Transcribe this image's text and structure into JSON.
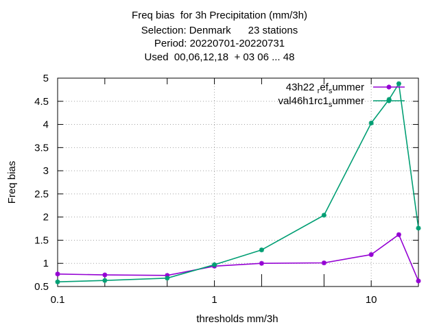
{
  "chart_data": {
    "type": "line",
    "title_lines": [
      "Freq bias  for 3h Precipitation (mm/3h)",
      "Selection: Denmark      23 stations",
      "Period: 20220701-20220731",
      "Used  00,06,12,18  + 03 06 ... 48"
    ],
    "xlabel": "thresholds mm/3h",
    "ylabel": "Freq bias",
    "x_scale": "log",
    "xlim": [
      0.1,
      20
    ],
    "ylim": [
      0.5,
      5
    ],
    "x_ticks": [
      0.1,
      0.2,
      0.5,
      1,
      2,
      5,
      10,
      20
    ],
    "x_tick_labels": [
      "0.1",
      "",
      "",
      "1",
      "",
      "",
      "10",
      ""
    ],
    "y_ticks": [
      0.5,
      1,
      1.5,
      2,
      2.5,
      3,
      3.5,
      4,
      4.5,
      5
    ],
    "y_tick_labels": [
      "0.5",
      "1",
      "1.5",
      "2",
      "2.5",
      "3",
      "3.5",
      "4",
      "4.5",
      "5"
    ],
    "grid": true,
    "legend_position": "top-right",
    "series": [
      {
        "name": "43h22_ref_summer",
        "color": "#9400d3",
        "legend_label": {
          "before": "43h22 ",
          "sub1": "r",
          "mid": "ef",
          "sub2": "s",
          "after": "ummer"
        },
        "x": [
          0.1,
          0.2,
          0.5,
          1,
          2,
          5,
          10,
          15,
          20
        ],
        "y": [
          0.77,
          0.75,
          0.74,
          0.94,
          1.0,
          1.01,
          1.19,
          1.62,
          0.62
        ]
      },
      {
        "name": "val46h1rc1_summer",
        "color": "#009e73",
        "legend_label": {
          "before": "val46h1rc1",
          "sub1": "",
          "mid": "",
          "sub2": "s",
          "after": "ummer"
        },
        "x": [
          0.1,
          0.2,
          0.5,
          1,
          2,
          5,
          10,
          13,
          15,
          20
        ],
        "y": [
          0.6,
          0.63,
          0.68,
          0.97,
          1.29,
          2.04,
          4.03,
          4.54,
          4.88,
          1.76
        ]
      }
    ]
  }
}
